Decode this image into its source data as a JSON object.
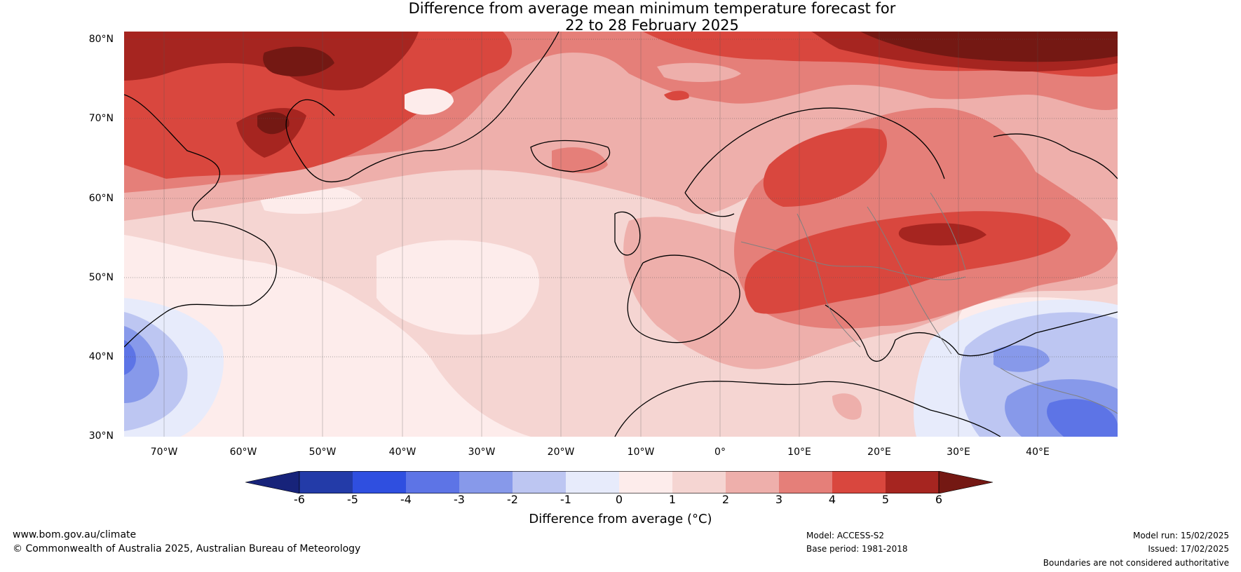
{
  "title": {
    "line1": "Difference from average mean minimum temperature forecast for",
    "line2": "22 to 28 February 2025"
  },
  "map": {
    "latitude_labels": [
      "80°N",
      "70°N",
      "60°N",
      "50°N",
      "40°N",
      "30°N"
    ],
    "longitude_labels": [
      "70°W",
      "60°W",
      "50°W",
      "40°W",
      "30°W",
      "20°W",
      "10°W",
      "0°",
      "10°E",
      "20°E",
      "30°E",
      "40°E"
    ],
    "lon_range": [
      -75,
      50
    ],
    "lat_range": [
      30,
      81
    ]
  },
  "colorbar": {
    "ticks": [
      "-6",
      "-5",
      "-4",
      "-3",
      "-2",
      "-1",
      "0",
      "1",
      "2",
      "3",
      "4",
      "5",
      "6"
    ],
    "label": "Difference from average (",
    "label_unit": "°C",
    "label_close": ")",
    "colors": [
      "#17237a",
      "#233ba8",
      "#2f4fe0",
      "#5d74e6",
      "#8799ea",
      "#bdc6f2",
      "#e7ebfb",
      "#fdeceb",
      "#f5d5d2",
      "#eeafab",
      "#e57f79",
      "#d9473e",
      "#a62520",
      "#741813"
    ]
  },
  "footer": {
    "website": "www.bom.gov.au/climate",
    "copyright": "© Commonwealth of Australia 2025, Australian Bureau of Meteorology",
    "model": "Model: ACCESS-S2",
    "base_period": "Base period: 1981-2018",
    "model_run": "Model run: 15/02/2025",
    "issued": "Issued: 17/02/2025",
    "disclaimer": "Boundaries are not considered authoritative"
  }
}
